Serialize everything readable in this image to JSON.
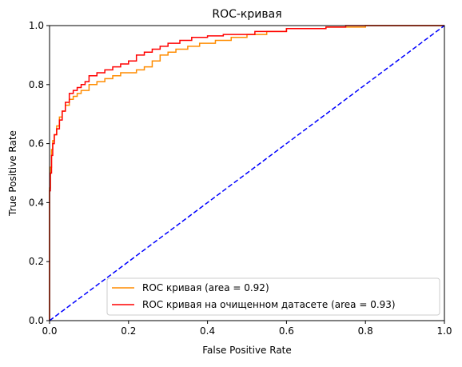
{
  "chart_data": {
    "type": "line",
    "title": "ROC-кривая",
    "xlabel": "False Positive Rate",
    "ylabel": "True Positive Rate",
    "xlim": [
      0.0,
      1.0
    ],
    "ylim": [
      0.0,
      1.0
    ],
    "xticks": [
      "0.0",
      "0.2",
      "0.4",
      "0.6",
      "0.8",
      "1.0"
    ],
    "yticks": [
      "0.0",
      "0.2",
      "0.4",
      "0.6",
      "0.8",
      "1.0"
    ],
    "grid": false,
    "legend_position": "bottom-right",
    "series": [
      {
        "name": "ROC кривая (area = 0.92)",
        "color": "#ff8c00",
        "step": true,
        "x": [
          0.0,
          0.0,
          0.002,
          0.005,
          0.008,
          0.012,
          0.018,
          0.025,
          0.032,
          0.04,
          0.05,
          0.06,
          0.07,
          0.08,
          0.09,
          0.1,
          0.12,
          0.14,
          0.16,
          0.18,
          0.2,
          0.22,
          0.24,
          0.26,
          0.28,
          0.3,
          0.32,
          0.35,
          0.38,
          0.42,
          0.46,
          0.5,
          0.55,
          0.6,
          0.65,
          0.7,
          0.75,
          0.8,
          0.85,
          0.9,
          0.95,
          1.0
        ],
        "y": [
          0.0,
          0.38,
          0.45,
          0.52,
          0.58,
          0.61,
          0.63,
          0.66,
          0.69,
          0.71,
          0.73,
          0.75,
          0.76,
          0.77,
          0.78,
          0.78,
          0.8,
          0.81,
          0.82,
          0.83,
          0.84,
          0.84,
          0.85,
          0.86,
          0.88,
          0.9,
          0.91,
          0.92,
          0.93,
          0.94,
          0.95,
          0.96,
          0.97,
          0.98,
          0.99,
          0.99,
          0.995,
          0.995,
          1.0,
          1.0,
          1.0,
          1.0
        ]
      },
      {
        "name": "ROC кривая на очищенном датасете (area = 0.93)",
        "color": "#ff0000",
        "step": true,
        "x": [
          0.0,
          0.0,
          0.002,
          0.005,
          0.008,
          0.012,
          0.018,
          0.025,
          0.032,
          0.04,
          0.05,
          0.06,
          0.07,
          0.08,
          0.09,
          0.1,
          0.12,
          0.14,
          0.16,
          0.18,
          0.2,
          0.22,
          0.24,
          0.26,
          0.28,
          0.3,
          0.33,
          0.36,
          0.4,
          0.44,
          0.48,
          0.52,
          0.56,
          0.6,
          0.65,
          0.7,
          0.75,
          0.8,
          0.85,
          0.9,
          0.95,
          1.0
        ],
        "y": [
          0.0,
          0.36,
          0.44,
          0.5,
          0.56,
          0.6,
          0.63,
          0.65,
          0.68,
          0.71,
          0.74,
          0.77,
          0.78,
          0.79,
          0.8,
          0.81,
          0.83,
          0.84,
          0.85,
          0.86,
          0.87,
          0.88,
          0.9,
          0.91,
          0.92,
          0.93,
          0.94,
          0.95,
          0.96,
          0.965,
          0.97,
          0.97,
          0.98,
          0.98,
          0.99,
          0.99,
          0.995,
          1.0,
          1.0,
          1.0,
          1.0,
          1.0
        ]
      },
      {
        "name": "",
        "color": "#0000ff",
        "dashed": true,
        "x": [
          0.0,
          1.0
        ],
        "y": [
          0.0,
          1.0
        ]
      }
    ]
  }
}
